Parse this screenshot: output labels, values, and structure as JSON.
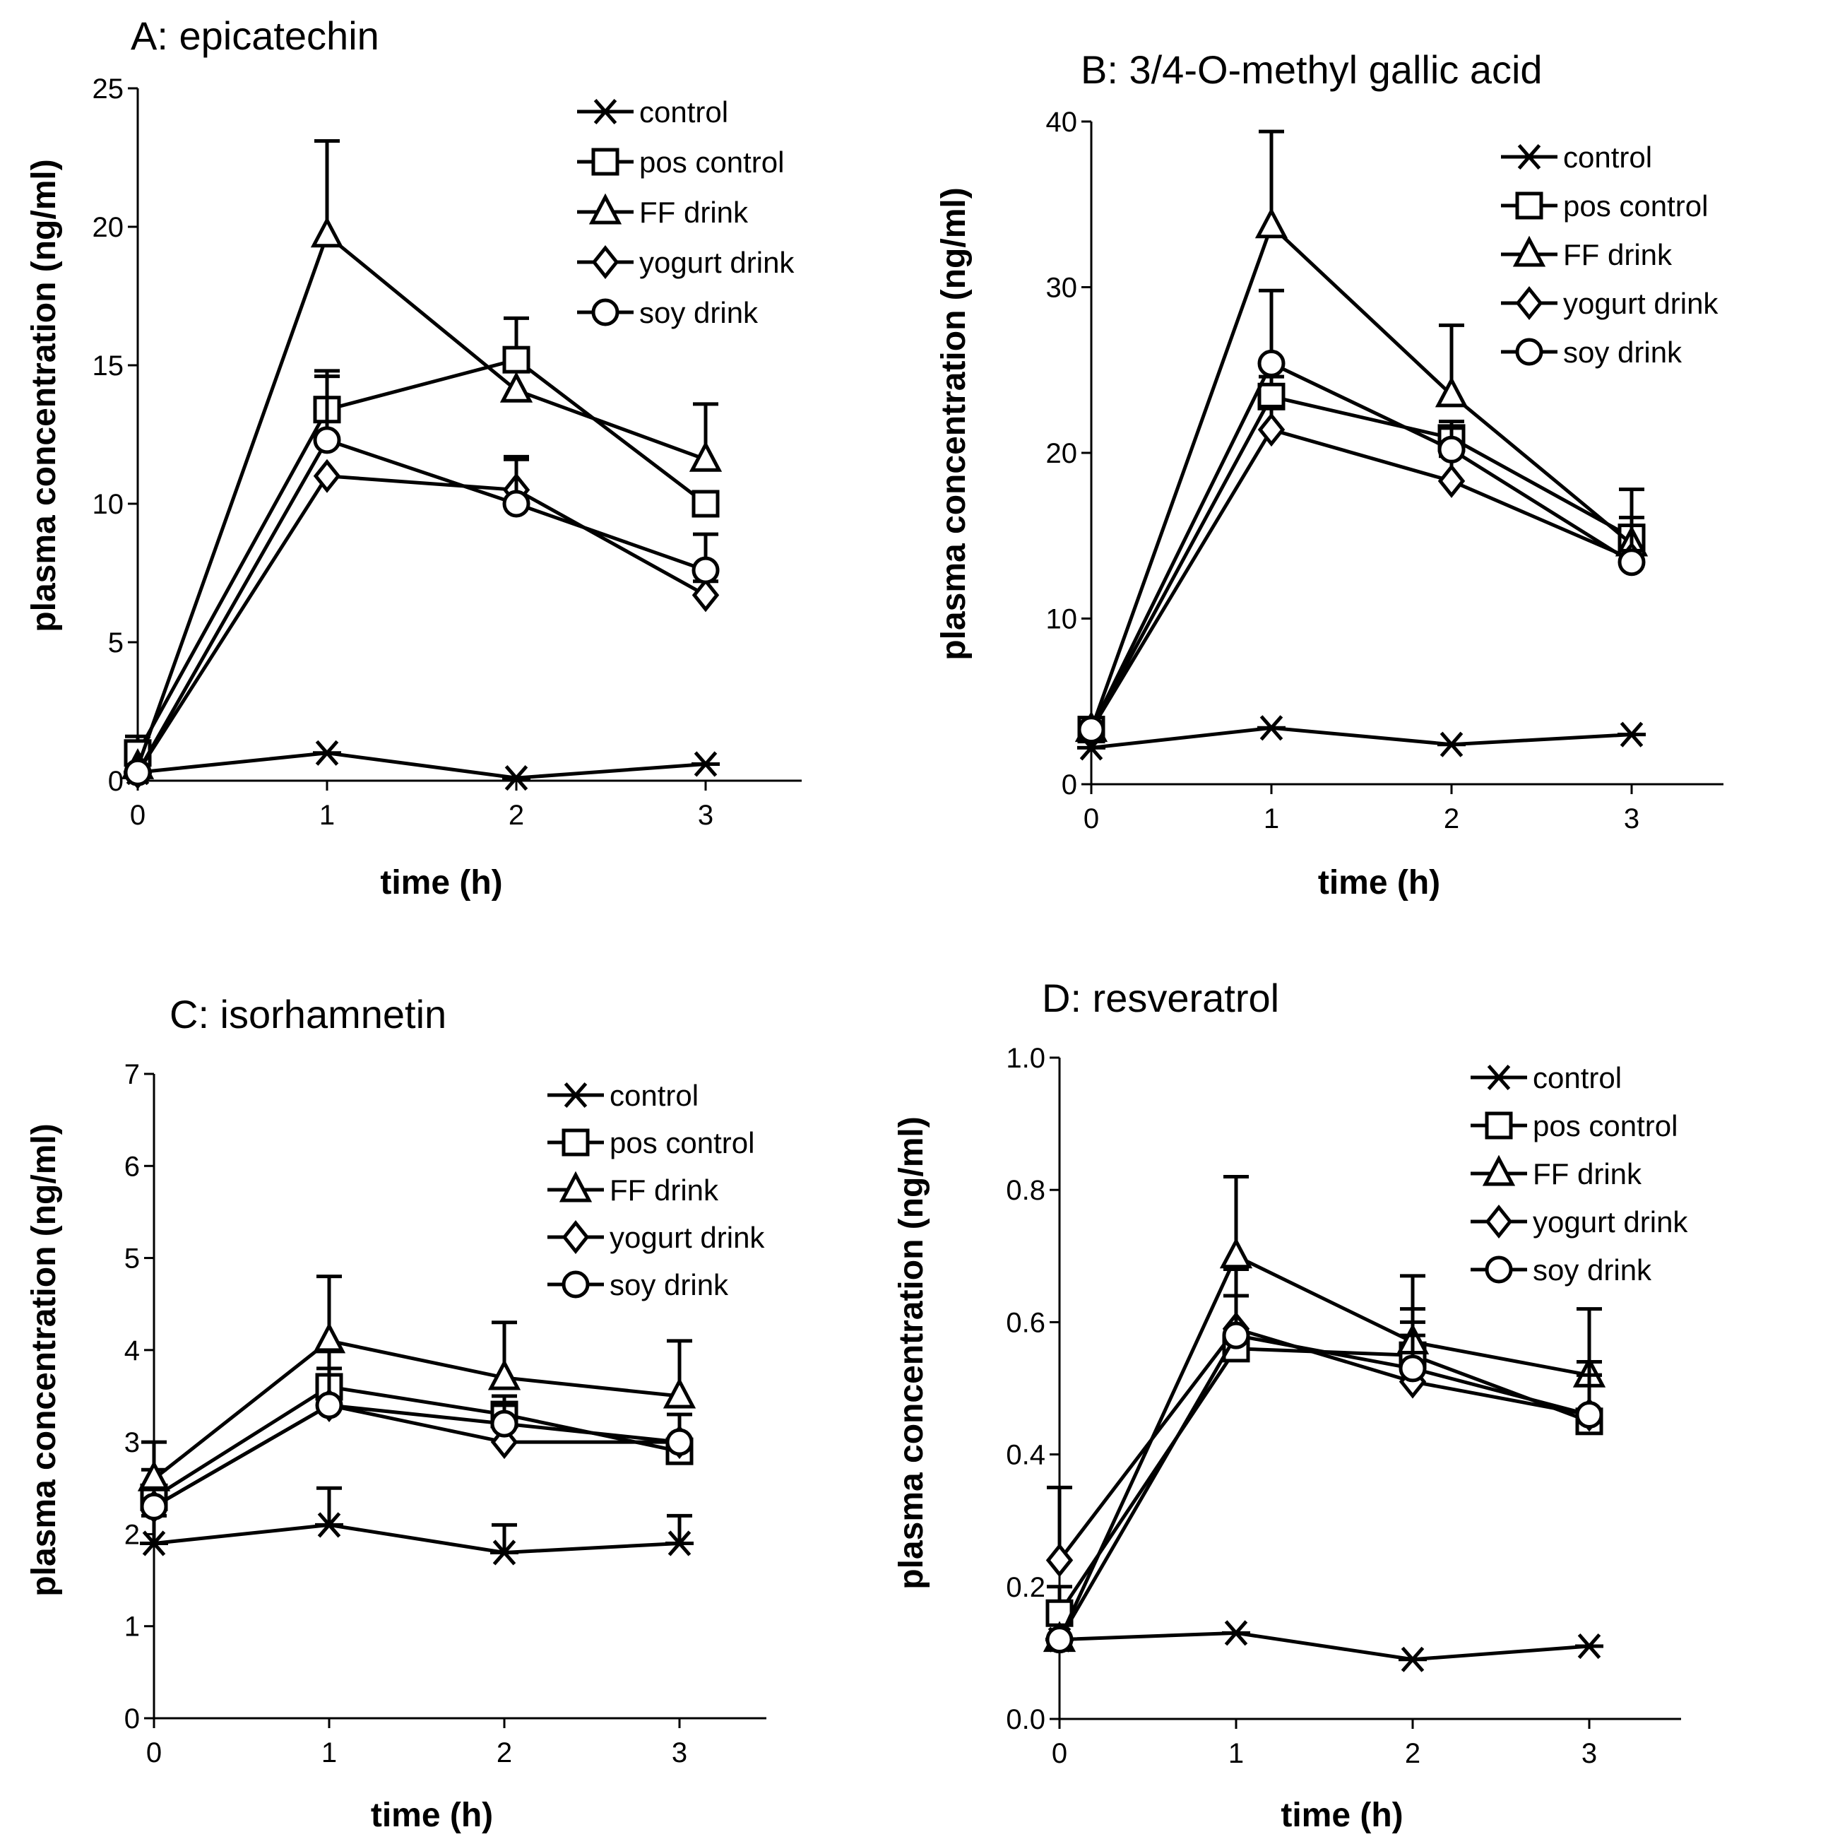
{
  "chart_data": [
    {
      "panel": "A",
      "type": "line",
      "title": "A: epicatechin",
      "xlabel": "time (h)",
      "ylabel": "plasma concentration (ng/ml)",
      "x": [
        0,
        1,
        2,
        3
      ],
      "xticks": [
        "0",
        "1",
        "2",
        "3"
      ],
      "xlim": [
        0,
        3.5
      ],
      "ylim": [
        0,
        25
      ],
      "yticks": [
        "0",
        "5",
        "10",
        "15",
        "20",
        "25"
      ],
      "legend_position": "top-right",
      "series": [
        {
          "name": "control",
          "marker": "asterisk",
          "values": [
            0.3,
            1.0,
            0.1,
            0.6
          ],
          "errors": [
            0,
            0,
            0,
            0
          ]
        },
        {
          "name": "pos control",
          "marker": "square",
          "values": [
            1.0,
            13.4,
            15.2,
            10.0
          ],
          "errors": [
            0.6,
            1.2,
            1.5,
            0
          ]
        },
        {
          "name": "FF drink",
          "marker": "triangle",
          "values": [
            0.5,
            19.7,
            14.1,
            11.6
          ],
          "errors": [
            0,
            3.4,
            0,
            2.0
          ]
        },
        {
          "name": "yogurt drink",
          "marker": "diamond",
          "values": [
            0.3,
            11.0,
            10.5,
            6.7
          ],
          "errors": [
            0,
            0,
            1.1,
            0.5
          ]
        },
        {
          "name": "soy drink",
          "marker": "circle",
          "values": [
            0.3,
            12.3,
            10.0,
            7.6
          ],
          "errors": [
            0,
            2.5,
            1.7,
            1.3
          ]
        }
      ]
    },
    {
      "panel": "B",
      "type": "line",
      "title": "B: 3/4-O-methyl gallic acid",
      "xlabel": "time (h)",
      "ylabel": "plasma concentration (ng/ml)",
      "x": [
        0,
        1,
        2,
        3
      ],
      "xticks": [
        "0",
        "1",
        "2",
        "3"
      ],
      "xlim": [
        0,
        3.5
      ],
      "ylim": [
        0,
        40
      ],
      "yticks": [
        "0",
        "10",
        "20",
        "30",
        "40"
      ],
      "legend_position": "top-right",
      "series": [
        {
          "name": "control",
          "marker": "asterisk",
          "values": [
            2.2,
            3.4,
            2.4,
            3.0
          ],
          "errors": [
            0,
            0,
            0,
            0
          ]
        },
        {
          "name": "pos control",
          "marker": "square",
          "values": [
            3.3,
            23.4,
            20.9,
            14.9
          ],
          "errors": [
            0,
            1.2,
            1.0,
            0
          ]
        },
        {
          "name": "FF drink",
          "marker": "triangle",
          "values": [
            3.3,
            33.7,
            23.5,
            14.5
          ],
          "errors": [
            0,
            5.7,
            4.2,
            3.3
          ]
        },
        {
          "name": "yogurt drink",
          "marker": "diamond",
          "values": [
            3.3,
            21.4,
            18.3,
            13.6
          ],
          "errors": [
            0,
            1.4,
            1.5,
            2.5
          ]
        },
        {
          "name": "soy drink",
          "marker": "circle",
          "values": [
            3.3,
            25.4,
            20.2,
            13.4
          ],
          "errors": [
            0,
            4.4,
            1.3,
            0.7
          ]
        }
      ]
    },
    {
      "panel": "C",
      "type": "line",
      "title": "C: isorhamnetin",
      "xlabel": "time (h)",
      "ylabel": "plasma concentration (ng/ml)",
      "x": [
        0,
        1,
        2,
        3
      ],
      "xticks": [
        "0",
        "1",
        "2",
        "3"
      ],
      "xlim": [
        0,
        3.5
      ],
      "ylim": [
        0,
        7
      ],
      "yticks": [
        "0",
        "1",
        "2",
        "3",
        "4",
        "5",
        "6",
        "7"
      ],
      "legend_position": "top-right",
      "series": [
        {
          "name": "control",
          "marker": "asterisk",
          "values": [
            1.9,
            2.1,
            1.8,
            1.9
          ],
          "errors": [
            0.3,
            0.4,
            0.3,
            0.3
          ]
        },
        {
          "name": "pos control",
          "marker": "square",
          "values": [
            2.4,
            3.6,
            3.3,
            2.9
          ],
          "errors": [
            0.3,
            0.2,
            0.2,
            0.4
          ]
        },
        {
          "name": "FF drink",
          "marker": "triangle",
          "values": [
            2.6,
            4.1,
            3.7,
            3.5
          ],
          "errors": [
            0.4,
            0.7,
            0.6,
            0.6
          ]
        },
        {
          "name": "yogurt drink",
          "marker": "diamond",
          "values": [
            2.3,
            3.4,
            3.0,
            3.0
          ],
          "errors": [
            0.2,
            0.6,
            0.4,
            0.3
          ]
        },
        {
          "name": "soy drink",
          "marker": "circle",
          "values": [
            2.3,
            3.4,
            3.2,
            3.0
          ],
          "errors": [
            0,
            0,
            0.3,
            0.3
          ]
        }
      ]
    },
    {
      "panel": "D",
      "type": "line",
      "title": "D: resveratrol",
      "xlabel": "time (h)",
      "ylabel": "plasma concentration (ng/ml)",
      "x": [
        0,
        1,
        2,
        3
      ],
      "xticks": [
        "0",
        "1",
        "2",
        "3"
      ],
      "xlim": [
        0,
        3.5
      ],
      "ylim": [
        0,
        1.0
      ],
      "yticks": [
        "0.0",
        "0.2",
        "0.4",
        "0.6",
        "0.8",
        "1.0"
      ],
      "legend_position": "top-right",
      "series": [
        {
          "name": "control",
          "marker": "asterisk",
          "values": [
            0.12,
            0.13,
            0.09,
            0.11
          ],
          "errors": [
            0,
            0,
            0,
            0
          ]
        },
        {
          "name": "pos control",
          "marker": "square",
          "values": [
            0.16,
            0.56,
            0.55,
            0.45
          ],
          "errors": [
            0.04,
            0.08,
            0.07,
            0.07
          ]
        },
        {
          "name": "FF drink",
          "marker": "triangle",
          "values": [
            0.12,
            0.7,
            0.57,
            0.52
          ],
          "errors": [
            0,
            0.12,
            0.1,
            0.1
          ]
        },
        {
          "name": "yogurt drink",
          "marker": "diamond",
          "values": [
            0.24,
            0.59,
            0.51,
            0.46
          ],
          "errors": [
            0.11,
            0.09,
            0.07,
            0.08
          ]
        },
        {
          "name": "soy drink",
          "marker": "circle",
          "values": [
            0.12,
            0.58,
            0.53,
            0.46
          ],
          "errors": [
            0,
            0.06,
            0.07,
            0.06
          ]
        }
      ]
    }
  ]
}
